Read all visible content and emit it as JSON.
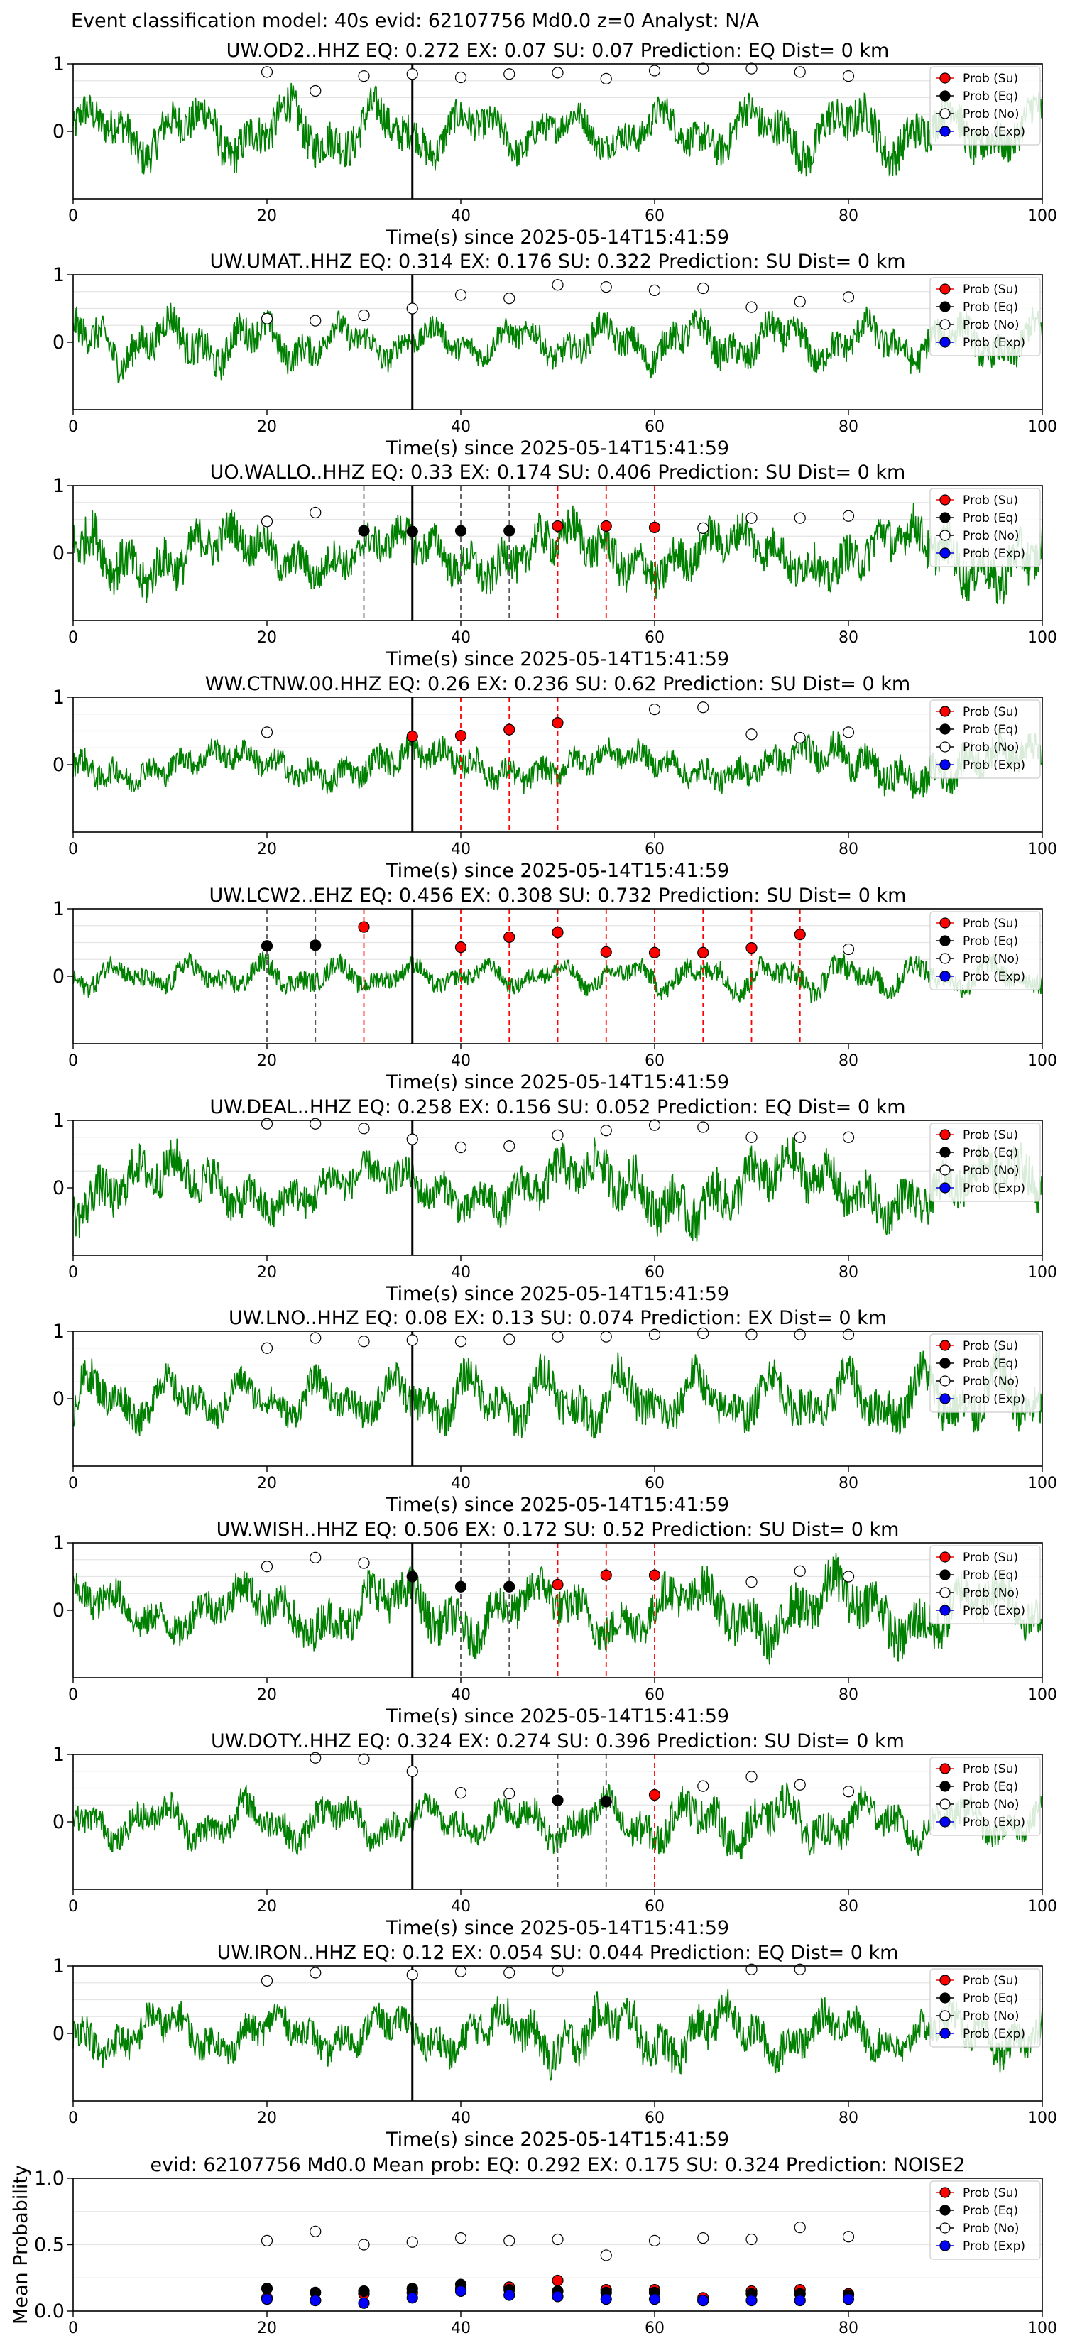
{
  "figure_title": "Event classification model: 40s evid: 62107756 Md0.0 z=0 Analyst: N/A",
  "xlabel": "Time(s) since 2025-05-14T15:41:59",
  "legend": [
    "Prob (Su)",
    "Prob (Eq)",
    "Prob (No)",
    "Prob (Exp)"
  ],
  "colors": {
    "waveform": "#008000",
    "su": "#ff0000",
    "eq": "#000000",
    "no": "#ffffff",
    "exp": "#0000ff",
    "onset": "#000000"
  },
  "chart_data": [
    {
      "type": "line",
      "title": "UW.OD2..HHZ   EQ: 0.272  EX: 0.07  SU: 0.07   Prediction: EQ    Dist= 0 km",
      "xlim": [
        0,
        100
      ],
      "xticks": [
        0,
        20,
        40,
        60,
        80,
        100
      ],
      "ytick_labels": [
        "1",
        "0"
      ],
      "yticks": [
        1,
        0
      ],
      "ylim": [
        -1,
        1
      ],
      "onset_x": 35,
      "amp": 0.55,
      "markers": [
        {
          "x": 20,
          "y": 0.88,
          "cls": "No"
        },
        {
          "x": 25,
          "y": 0.6,
          "cls": "No"
        },
        {
          "x": 30,
          "y": 0.82,
          "cls": "No"
        },
        {
          "x": 35,
          "y": 0.85,
          "cls": "No"
        },
        {
          "x": 40,
          "y": 0.8,
          "cls": "No"
        },
        {
          "x": 45,
          "y": 0.85,
          "cls": "No"
        },
        {
          "x": 50,
          "y": 0.87,
          "cls": "No"
        },
        {
          "x": 55,
          "y": 0.78,
          "cls": "No"
        },
        {
          "x": 60,
          "y": 0.9,
          "cls": "No"
        },
        {
          "x": 65,
          "y": 0.93,
          "cls": "No"
        },
        {
          "x": 70,
          "y": 0.93,
          "cls": "No"
        },
        {
          "x": 75,
          "y": 0.88,
          "cls": "No"
        },
        {
          "x": 80,
          "y": 0.82,
          "cls": "No"
        }
      ],
      "pick_lines": []
    },
    {
      "type": "line",
      "title": "UW.UMAT..HHZ   EQ: 0.314  EX: 0.176  SU: 0.322   Prediction: SU    Dist= 0 km",
      "xlim": [
        0,
        100
      ],
      "xticks": [
        0,
        20,
        40,
        60,
        80,
        100
      ],
      "ytick_labels": [
        "1",
        "0"
      ],
      "yticks": [
        1,
        0
      ],
      "ylim": [
        -1,
        1
      ],
      "onset_x": 35,
      "amp": 0.45,
      "markers": [
        {
          "x": 20,
          "y": 0.35,
          "cls": "No"
        },
        {
          "x": 25,
          "y": 0.32,
          "cls": "No"
        },
        {
          "x": 30,
          "y": 0.4,
          "cls": "No"
        },
        {
          "x": 35,
          "y": 0.5,
          "cls": "No"
        },
        {
          "x": 40,
          "y": 0.7,
          "cls": "No"
        },
        {
          "x": 45,
          "y": 0.65,
          "cls": "No"
        },
        {
          "x": 50,
          "y": 0.85,
          "cls": "No"
        },
        {
          "x": 55,
          "y": 0.82,
          "cls": "No"
        },
        {
          "x": 60,
          "y": 0.77,
          "cls": "No"
        },
        {
          "x": 65,
          "y": 0.8,
          "cls": "No"
        },
        {
          "x": 70,
          "y": 0.52,
          "cls": "No"
        },
        {
          "x": 75,
          "y": 0.6,
          "cls": "No"
        },
        {
          "x": 80,
          "y": 0.67,
          "cls": "No"
        }
      ],
      "pick_lines": []
    },
    {
      "type": "line",
      "title": "UO.WALLO..HHZ   EQ: 0.33  EX: 0.174  SU: 0.406   Prediction: SU    Dist= 0 km",
      "xlim": [
        0,
        100
      ],
      "xticks": [
        0,
        20,
        40,
        60,
        80,
        100
      ],
      "ytick_labels": [
        "1",
        "0"
      ],
      "yticks": [
        1,
        0
      ],
      "ylim": [
        -1,
        1
      ],
      "onset_x": 35,
      "amp": 0.6,
      "markers": [
        {
          "x": 20,
          "y": 0.47,
          "cls": "No"
        },
        {
          "x": 25,
          "y": 0.6,
          "cls": "No"
        },
        {
          "x": 30,
          "y": 0.33,
          "cls": "Eq"
        },
        {
          "x": 35,
          "y": 0.32,
          "cls": "Eq"
        },
        {
          "x": 40,
          "y": 0.33,
          "cls": "Eq"
        },
        {
          "x": 45,
          "y": 0.33,
          "cls": "Eq"
        },
        {
          "x": 50,
          "y": 0.4,
          "cls": "Su"
        },
        {
          "x": 55,
          "y": 0.4,
          "cls": "Su"
        },
        {
          "x": 60,
          "y": 0.38,
          "cls": "Su"
        },
        {
          "x": 65,
          "y": 0.37,
          "cls": "No"
        },
        {
          "x": 70,
          "y": 0.52,
          "cls": "No"
        },
        {
          "x": 75,
          "y": 0.52,
          "cls": "No"
        },
        {
          "x": 80,
          "y": 0.55,
          "cls": "No"
        }
      ],
      "pick_lines": [
        {
          "x": 30,
          "cls": "Eq"
        },
        {
          "x": 40,
          "cls": "Eq"
        },
        {
          "x": 45,
          "cls": "Eq"
        },
        {
          "x": 50,
          "cls": "Su"
        },
        {
          "x": 55,
          "cls": "Su"
        },
        {
          "x": 60,
          "cls": "Su"
        }
      ]
    },
    {
      "type": "line",
      "title": "WW.CTNW.00.HHZ   EQ: 0.26  EX: 0.236  SU: 0.62   Prediction: SU    Dist= 0 km",
      "xlim": [
        0,
        100
      ],
      "xticks": [
        0,
        20,
        40,
        60,
        80,
        100
      ],
      "ytick_labels": [
        "1",
        "0"
      ],
      "yticks": [
        1,
        0
      ],
      "ylim": [
        -1,
        1
      ],
      "onset_x": 35,
      "amp": 0.4,
      "markers": [
        {
          "x": 20,
          "y": 0.48,
          "cls": "No"
        },
        {
          "x": 35,
          "y": 0.42,
          "cls": "Su"
        },
        {
          "x": 40,
          "y": 0.43,
          "cls": "Su"
        },
        {
          "x": 45,
          "y": 0.52,
          "cls": "Su"
        },
        {
          "x": 50,
          "y": 0.62,
          "cls": "Su"
        },
        {
          "x": 60,
          "y": 0.82,
          "cls": "No"
        },
        {
          "x": 65,
          "y": 0.85,
          "cls": "No"
        },
        {
          "x": 70,
          "y": 0.45,
          "cls": "No"
        },
        {
          "x": 75,
          "y": 0.4,
          "cls": "No"
        },
        {
          "x": 80,
          "y": 0.48,
          "cls": "No"
        }
      ],
      "pick_lines": [
        {
          "x": 40,
          "cls": "Su"
        },
        {
          "x": 45,
          "cls": "Su"
        },
        {
          "x": 50,
          "cls": "Su"
        }
      ]
    },
    {
      "type": "line",
      "title": "UW.LCW2..EHZ   EQ: 0.456  EX: 0.308  SU: 0.732   Prediction: SU    Dist= 0 km",
      "xlim": [
        0,
        100
      ],
      "xticks": [
        0,
        20,
        40,
        60,
        80,
        100
      ],
      "ytick_labels": [
        "1",
        "0"
      ],
      "yticks": [
        1,
        0
      ],
      "ylim": [
        -1,
        1
      ],
      "onset_x": 35,
      "amp": 0.3,
      "markers": [
        {
          "x": 20,
          "y": 0.45,
          "cls": "Eq"
        },
        {
          "x": 25,
          "y": 0.46,
          "cls": "Eq"
        },
        {
          "x": 30,
          "y": 0.73,
          "cls": "Su"
        },
        {
          "x": 40,
          "y": 0.43,
          "cls": "Su"
        },
        {
          "x": 45,
          "y": 0.58,
          "cls": "Su"
        },
        {
          "x": 50,
          "y": 0.65,
          "cls": "Su"
        },
        {
          "x": 55,
          "y": 0.36,
          "cls": "Su"
        },
        {
          "x": 60,
          "y": 0.35,
          "cls": "Su"
        },
        {
          "x": 65,
          "y": 0.35,
          "cls": "Su"
        },
        {
          "x": 70,
          "y": 0.42,
          "cls": "Su"
        },
        {
          "x": 75,
          "y": 0.62,
          "cls": "Su"
        },
        {
          "x": 80,
          "y": 0.4,
          "cls": "No"
        }
      ],
      "pick_lines": [
        {
          "x": 20,
          "cls": "Eq"
        },
        {
          "x": 25,
          "cls": "Eq"
        },
        {
          "x": 30,
          "cls": "Su"
        },
        {
          "x": 40,
          "cls": "Su"
        },
        {
          "x": 45,
          "cls": "Su"
        },
        {
          "x": 50,
          "cls": "Su"
        },
        {
          "x": 55,
          "cls": "Su"
        },
        {
          "x": 60,
          "cls": "Su"
        },
        {
          "x": 65,
          "cls": "Su"
        },
        {
          "x": 70,
          "cls": "Su"
        },
        {
          "x": 75,
          "cls": "Su"
        }
      ]
    },
    {
      "type": "line",
      "title": "UW.DEAL..HHZ   EQ: 0.258  EX: 0.156  SU: 0.052   Prediction: EQ    Dist= 0 km",
      "xlim": [
        0,
        100
      ],
      "xticks": [
        0,
        20,
        40,
        60,
        80,
        100
      ],
      "ytick_labels": [
        "1",
        "0"
      ],
      "yticks": [
        1,
        0
      ],
      "ylim": [
        -1,
        1
      ],
      "onset_x": 35,
      "amp": 0.6,
      "markers": [
        {
          "x": 20,
          "y": 0.95,
          "cls": "No"
        },
        {
          "x": 25,
          "y": 0.95,
          "cls": "No"
        },
        {
          "x": 30,
          "y": 0.88,
          "cls": "No"
        },
        {
          "x": 35,
          "y": 0.72,
          "cls": "No"
        },
        {
          "x": 40,
          "y": 0.6,
          "cls": "No"
        },
        {
          "x": 45,
          "y": 0.62,
          "cls": "No"
        },
        {
          "x": 50,
          "y": 0.78,
          "cls": "No"
        },
        {
          "x": 55,
          "y": 0.85,
          "cls": "No"
        },
        {
          "x": 60,
          "y": 0.93,
          "cls": "No"
        },
        {
          "x": 65,
          "y": 0.9,
          "cls": "No"
        },
        {
          "x": 70,
          "y": 0.75,
          "cls": "No"
        },
        {
          "x": 75,
          "y": 0.75,
          "cls": "No"
        },
        {
          "x": 80,
          "y": 0.75,
          "cls": "No"
        }
      ],
      "pick_lines": []
    },
    {
      "type": "line",
      "title": "UW.LNO..HHZ   EQ: 0.08  EX: 0.13  SU: 0.074   Prediction: EX    Dist= 0 km",
      "xlim": [
        0,
        100
      ],
      "xticks": [
        0,
        20,
        40,
        60,
        80,
        100
      ],
      "ytick_labels": [
        "1",
        "0"
      ],
      "yticks": [
        1,
        0
      ],
      "ylim": [
        -1,
        1
      ],
      "onset_x": 35,
      "amp": 0.55,
      "markers": [
        {
          "x": 20,
          "y": 0.75,
          "cls": "No"
        },
        {
          "x": 25,
          "y": 0.9,
          "cls": "No"
        },
        {
          "x": 30,
          "y": 0.85,
          "cls": "No"
        },
        {
          "x": 35,
          "y": 0.87,
          "cls": "No"
        },
        {
          "x": 40,
          "y": 0.85,
          "cls": "No"
        },
        {
          "x": 45,
          "y": 0.88,
          "cls": "No"
        },
        {
          "x": 50,
          "y": 0.92,
          "cls": "No"
        },
        {
          "x": 55,
          "y": 0.92,
          "cls": "No"
        },
        {
          "x": 60,
          "y": 0.95,
          "cls": "No"
        },
        {
          "x": 65,
          "y": 0.97,
          "cls": "No"
        },
        {
          "x": 70,
          "y": 0.95,
          "cls": "No"
        },
        {
          "x": 75,
          "y": 0.95,
          "cls": "No"
        },
        {
          "x": 80,
          "y": 0.95,
          "cls": "No"
        }
      ],
      "pick_lines": []
    },
    {
      "type": "line",
      "title": "UW.WISH..HHZ   EQ: 0.506  EX: 0.172  SU: 0.52   Prediction: SU    Dist= 0 km",
      "xlim": [
        0,
        100
      ],
      "xticks": [
        0,
        20,
        40,
        60,
        80,
        100
      ],
      "ytick_labels": [
        "1",
        "0"
      ],
      "yticks": [
        1,
        0
      ],
      "ylim": [
        -1,
        1
      ],
      "onset_x": 35,
      "amp": 0.6,
      "markers": [
        {
          "x": 20,
          "y": 0.65,
          "cls": "No"
        },
        {
          "x": 25,
          "y": 0.78,
          "cls": "No"
        },
        {
          "x": 30,
          "y": 0.7,
          "cls": "No"
        },
        {
          "x": 35,
          "y": 0.5,
          "cls": "Eq"
        },
        {
          "x": 40,
          "y": 0.35,
          "cls": "Eq"
        },
        {
          "x": 45,
          "y": 0.35,
          "cls": "Eq"
        },
        {
          "x": 50,
          "y": 0.38,
          "cls": "Su"
        },
        {
          "x": 55,
          "y": 0.52,
          "cls": "Su"
        },
        {
          "x": 60,
          "y": 0.52,
          "cls": "Su"
        },
        {
          "x": 70,
          "y": 0.42,
          "cls": "No"
        },
        {
          "x": 75,
          "y": 0.58,
          "cls": "No"
        },
        {
          "x": 80,
          "y": 0.5,
          "cls": "No"
        }
      ],
      "pick_lines": [
        {
          "x": 40,
          "cls": "Eq"
        },
        {
          "x": 45,
          "cls": "Eq"
        },
        {
          "x": 50,
          "cls": "Su"
        },
        {
          "x": 55,
          "cls": "Su"
        },
        {
          "x": 60,
          "cls": "Su"
        }
      ]
    },
    {
      "type": "line",
      "title": "UW.DOTY..HHZ   EQ: 0.324  EX: 0.274  SU: 0.396   Prediction: SU    Dist= 0 km",
      "xlim": [
        0,
        100
      ],
      "xticks": [
        0,
        20,
        40,
        60,
        80,
        100
      ],
      "ytick_labels": [
        "1",
        "0"
      ],
      "yticks": [
        1,
        0
      ],
      "ylim": [
        -1,
        1
      ],
      "onset_x": 35,
      "amp": 0.45,
      "markers": [
        {
          "x": 25,
          "y": 0.95,
          "cls": "No"
        },
        {
          "x": 30,
          "y": 0.93,
          "cls": "No"
        },
        {
          "x": 35,
          "y": 0.75,
          "cls": "No"
        },
        {
          "x": 40,
          "y": 0.43,
          "cls": "No"
        },
        {
          "x": 45,
          "y": 0.42,
          "cls": "No"
        },
        {
          "x": 50,
          "y": 0.32,
          "cls": "Eq"
        },
        {
          "x": 55,
          "y": 0.3,
          "cls": "Eq"
        },
        {
          "x": 60,
          "y": 0.4,
          "cls": "Su"
        },
        {
          "x": 65,
          "y": 0.53,
          "cls": "No"
        },
        {
          "x": 70,
          "y": 0.67,
          "cls": "No"
        },
        {
          "x": 75,
          "y": 0.55,
          "cls": "No"
        },
        {
          "x": 80,
          "y": 0.45,
          "cls": "No"
        }
      ],
      "pick_lines": [
        {
          "x": 50,
          "cls": "Eq"
        },
        {
          "x": 55,
          "cls": "Eq"
        },
        {
          "x": 60,
          "cls": "Su"
        }
      ]
    },
    {
      "type": "line",
      "title": "UW.IRON..HHZ   EQ: 0.12  EX: 0.054  SU: 0.044   Prediction: EQ    Dist= 0 km",
      "xlim": [
        0,
        100
      ],
      "xticks": [
        0,
        20,
        40,
        60,
        80,
        100
      ],
      "ytick_labels": [
        "1",
        "0"
      ],
      "yticks": [
        1,
        0
      ],
      "ylim": [
        -1,
        1
      ],
      "onset_x": 35,
      "amp": 0.5,
      "markers": [
        {
          "x": 20,
          "y": 0.78,
          "cls": "No"
        },
        {
          "x": 25,
          "y": 0.9,
          "cls": "No"
        },
        {
          "x": 35,
          "y": 0.87,
          "cls": "No"
        },
        {
          "x": 40,
          "y": 0.92,
          "cls": "No"
        },
        {
          "x": 45,
          "y": 0.9,
          "cls": "No"
        },
        {
          "x": 50,
          "y": 0.93,
          "cls": "No"
        },
        {
          "x": 70,
          "y": 0.95,
          "cls": "No"
        },
        {
          "x": 75,
          "y": 0.95,
          "cls": "No"
        }
      ],
      "pick_lines": []
    },
    {
      "type": "scatter",
      "title": "evid: 62107756  Md0.0   Mean prob:   EQ: 0.292  EX: 0.175  SU: 0.324   Prediction: NOISE2",
      "ylabel": "Mean Probability",
      "xlim": [
        0,
        100
      ],
      "ylim": [
        0,
        1
      ],
      "xticks": [
        0,
        20,
        40,
        60,
        80,
        100
      ],
      "yticks": [
        0,
        0.5,
        1
      ],
      "ytick_labels": [
        "0.0",
        "0.5",
        "1.0"
      ],
      "grid": true,
      "legend_position": "top-right",
      "x": [
        20,
        25,
        30,
        35,
        40,
        45,
        50,
        55,
        60,
        65,
        70,
        75,
        80
      ],
      "series": [
        {
          "name": "Prob (Su)",
          "cls": "Su",
          "values": [
            0.1,
            0.08,
            0.13,
            0.14,
            0.17,
            0.18,
            0.23,
            0.16,
            0.16,
            0.1,
            0.15,
            0.16,
            0.13
          ]
        },
        {
          "name": "Prob (Eq)",
          "cls": "Eq",
          "values": [
            0.17,
            0.14,
            0.15,
            0.17,
            0.2,
            0.16,
            0.15,
            0.14,
            0.14,
            0.08,
            0.13,
            0.13,
            0.12
          ]
        },
        {
          "name": "Prob (No)",
          "cls": "No",
          "values": [
            0.53,
            0.6,
            0.5,
            0.52,
            0.55,
            0.53,
            0.54,
            0.42,
            0.53,
            0.55,
            0.54,
            0.63,
            0.56
          ]
        },
        {
          "name": "Prob (Exp)",
          "cls": "Exp",
          "values": [
            0.09,
            0.08,
            0.06,
            0.1,
            0.15,
            0.12,
            0.11,
            0.09,
            0.09,
            0.08,
            0.08,
            0.08,
            0.09
          ]
        }
      ]
    }
  ]
}
